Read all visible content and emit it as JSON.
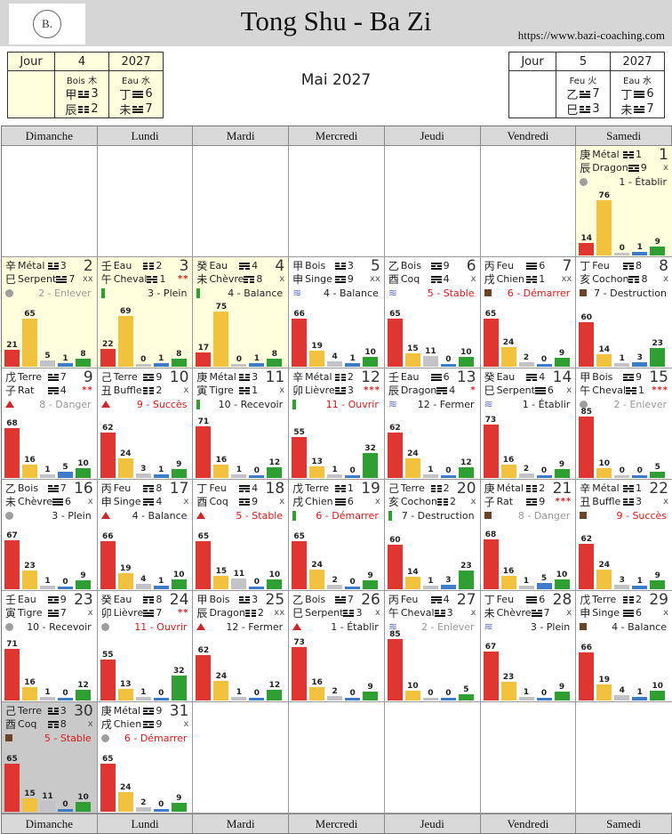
{
  "header": {
    "logo_text": "B.",
    "title": "Tong Shu - Ba Zi",
    "url": "https://www.bazi-coaching.com"
  },
  "month_title": "Mai 2027",
  "info_boxes": {
    "left": {
      "label": "Jour",
      "day": "4",
      "year": "2027",
      "columns": [
        {
          "element": "Bois 木",
          "stem": "甲",
          "stem_star": 3,
          "branch": "辰",
          "branch_star": 2
        },
        {
          "element": "Eau 水",
          "stem": "丁",
          "stem_star": 6,
          "branch": "未",
          "branch_star": 7
        }
      ]
    },
    "right": {
      "label": "Jour",
      "day": "5",
      "year": "2027",
      "columns": [
        {
          "element": "Feu 火",
          "stem": "乙",
          "stem_star": 7,
          "branch": "巳",
          "branch_star": 3
        },
        {
          "element": "Eau 水",
          "stem": "丁",
          "stem_star": 6,
          "branch": "未",
          "branch_star": 7
        }
      ]
    }
  },
  "weekdays": [
    "Dimanche",
    "Lundi",
    "Mardi",
    "Mercredi",
    "Jeudi",
    "Vendredi",
    "Samedi"
  ],
  "first_day_column": 6,
  "bar_colors": [
    "#df3632",
    "#f2c13e",
    "#c3c3c7",
    "#3d7cc9",
    "#2f9e33"
  ],
  "bar_series_names": [
    "red",
    "gold",
    "gray",
    "blue",
    "green"
  ],
  "days": [
    {
      "day": 1,
      "stem": "庚",
      "stem_element": "Métal",
      "stem_star": 1,
      "branch": "辰",
      "branch_name": "Dragon",
      "branch_star": 9,
      "mark": "x",
      "mark_style": "plain",
      "icon": "circle-gray",
      "officer": "1 - Établir",
      "officer_style": "normal",
      "bars": [
        14,
        76,
        0,
        1,
        9
      ],
      "bg": "yellow"
    },
    {
      "day": 2,
      "stem": "辛",
      "stem_element": "Métal",
      "stem_star": 3,
      "branch": "巳",
      "branch_name": "Serpent",
      "branch_star": 7,
      "mark": "xx",
      "mark_style": "plain",
      "icon": "circle-gray",
      "officer": "2 - Enlever",
      "officer_style": "muted",
      "bars": [
        21,
        65,
        5,
        1,
        8
      ],
      "bg": "yellow"
    },
    {
      "day": 3,
      "stem": "壬",
      "stem_element": "Eau",
      "stem_star": 2,
      "branch": "午",
      "branch_name": "Cheval",
      "branch_star": 1,
      "mark": "**",
      "mark_style": "red",
      "icon": "bar-green",
      "officer": "3 - Plein",
      "officer_style": "normal",
      "bars": [
        22,
        69,
        0,
        1,
        8
      ],
      "bg": "yellow"
    },
    {
      "day": 4,
      "stem": "癸",
      "stem_element": "Eau",
      "stem_star": 4,
      "branch": "未",
      "branch_name": "Chèvre",
      "branch_star": 8,
      "mark": "x",
      "mark_style": "plain",
      "icon": "bar-green",
      "officer": "4 - Balance",
      "officer_style": "normal",
      "bars": [
        17,
        75,
        0,
        1,
        8
      ],
      "bg": "yellow"
    },
    {
      "day": 5,
      "stem": "甲",
      "stem_element": "Bois",
      "stem_star": 3,
      "branch": "申",
      "branch_name": "Singe",
      "branch_star": 9,
      "mark": "xx",
      "mark_style": "plain",
      "icon": "wave-blue",
      "officer": "4 - Balance",
      "officer_style": "normal",
      "bars": [
        66,
        19,
        4,
        1,
        10
      ],
      "bg": "none"
    },
    {
      "day": 6,
      "stem": "乙",
      "stem_element": "Bois",
      "stem_star": 9,
      "branch": "酉",
      "branch_name": "Coq",
      "branch_star": 4,
      "mark": "x",
      "mark_style": "plain",
      "icon": "wave-blue",
      "officer": "5 - Stable",
      "officer_style": "red",
      "bars": [
        65,
        15,
        11,
        0,
        10
      ],
      "bg": "none"
    },
    {
      "day": 7,
      "stem": "丙",
      "stem_element": "Feu",
      "stem_star": 6,
      "branch": "戌",
      "branch_name": "Chien",
      "branch_star": 1,
      "mark": "xx",
      "mark_style": "plain",
      "icon": "square-brown",
      "officer": "6 - Démarrer",
      "officer_style": "red",
      "bars": [
        65,
        24,
        2,
        0,
        9
      ],
      "bg": "none"
    },
    {
      "day": 8,
      "stem": "丁",
      "stem_element": "Feu",
      "stem_star": 8,
      "branch": "亥",
      "branch_name": "Cochon",
      "branch_star": 8,
      "mark": "x",
      "mark_style": "plain",
      "icon": "square-brown",
      "officer": "7 - Destruction",
      "officer_style": "normal",
      "bars": [
        60,
        14,
        1,
        3,
        23
      ],
      "bg": "none"
    },
    {
      "day": 9,
      "stem": "戊",
      "stem_element": "Terre",
      "stem_star": 7,
      "branch": "子",
      "branch_name": "Rat",
      "branch_star": 4,
      "mark": "**",
      "mark_style": "red",
      "icon": "triangle-red",
      "officer": "8 - Danger",
      "officer_style": "muted",
      "bars": [
        68,
        16,
        1,
        5,
        10
      ],
      "bg": "none"
    },
    {
      "day": 10,
      "stem": "己",
      "stem_element": "Terre",
      "stem_star": 9,
      "branch": "丑",
      "branch_name": "Buffle",
      "branch_star": 2,
      "mark": "x",
      "mark_style": "plain",
      "icon": "triangle-red",
      "officer": "9 - Succès",
      "officer_style": "red",
      "bars": [
        62,
        24,
        3,
        1,
        9
      ],
      "bg": "none"
    },
    {
      "day": 11,
      "stem": "庚",
      "stem_element": "Métal",
      "stem_star": 3,
      "branch": "寅",
      "branch_name": "Tigre",
      "branch_star": 1,
      "mark": "x",
      "mark_style": "plain",
      "icon": "bar-green",
      "officer": "10 - Recevoir",
      "officer_style": "normal",
      "bars": [
        71,
        16,
        1,
        0,
        12
      ],
      "bg": "none"
    },
    {
      "day": 12,
      "stem": "辛",
      "stem_element": "Métal",
      "stem_star": 2,
      "branch": "卯",
      "branch_name": "Lièvre",
      "branch_star": 3,
      "mark": "***",
      "mark_style": "red",
      "icon": "bar-green",
      "officer": "11 - Ouvrir",
      "officer_style": "red",
      "bars": [
        55,
        13,
        1,
        0,
        32
      ],
      "bg": "none"
    },
    {
      "day": 13,
      "stem": "壬",
      "stem_element": "Eau",
      "stem_star": 6,
      "branch": "辰",
      "branch_name": "Dragon",
      "branch_star": 4,
      "mark": "*",
      "mark_style": "red",
      "icon": "wave-blue",
      "officer": "12 - Fermer",
      "officer_style": "normal",
      "bars": [
        62,
        24,
        1,
        0,
        12
      ],
      "bg": "none"
    },
    {
      "day": 14,
      "stem": "癸",
      "stem_element": "Eau",
      "stem_star": 4,
      "branch": "巳",
      "branch_name": "Serpent",
      "branch_star": 6,
      "mark": "x",
      "mark_style": "plain",
      "icon": "wave-blue",
      "officer": "1 - Établir",
      "officer_style": "normal",
      "bars": [
        73,
        16,
        2,
        0,
        9
      ],
      "bg": "none"
    },
    {
      "day": 15,
      "stem": "甲",
      "stem_element": "Bois",
      "stem_star": 9,
      "branch": "午",
      "branch_name": "Cheval",
      "branch_star": 1,
      "mark": "***",
      "mark_style": "red",
      "icon": "circle-gray",
      "officer": "2 - Enlever",
      "officer_style": "muted",
      "bars": [
        85,
        10,
        0,
        0,
        5
      ],
      "bg": "none"
    },
    {
      "day": 16,
      "stem": "乙",
      "stem_element": "Bois",
      "stem_star": 7,
      "branch": "未",
      "branch_name": "Chèvre",
      "branch_star": 6,
      "mark": "x",
      "mark_style": "plain",
      "icon": "circle-gray",
      "officer": "3 - Plein",
      "officer_style": "normal",
      "bars": [
        67,
        23,
        1,
        0,
        9
      ],
      "bg": "none"
    },
    {
      "day": 17,
      "stem": "丙",
      "stem_element": "Feu",
      "stem_star": 8,
      "branch": "申",
      "branch_name": "Singe",
      "branch_star": 4,
      "mark": "x",
      "mark_style": "plain",
      "icon": "triangle-red",
      "officer": "4 - Balance",
      "officer_style": "normal",
      "bars": [
        66,
        19,
        4,
        1,
        10
      ],
      "bg": "none"
    },
    {
      "day": 18,
      "stem": "丁",
      "stem_element": "Feu",
      "stem_star": 4,
      "branch": "酉",
      "branch_name": "Coq",
      "branch_star": 9,
      "mark": "x",
      "mark_style": "plain",
      "icon": "triangle-red",
      "officer": "5 - Stable",
      "officer_style": "red",
      "bars": [
        65,
        15,
        11,
        0,
        10
      ],
      "bg": "none"
    },
    {
      "day": 19,
      "stem": "戊",
      "stem_element": "Terre",
      "stem_star": 1,
      "branch": "戌",
      "branch_name": "Chien",
      "branch_star": 6,
      "mark": "x",
      "mark_style": "plain",
      "icon": "bar-green",
      "officer": "6 - Démarrer",
      "officer_style": "red",
      "bars": [
        65,
        24,
        2,
        0,
        9
      ],
      "bg": "none"
    },
    {
      "day": 20,
      "stem": "己",
      "stem_element": "Terre",
      "stem_star": 2,
      "branch": "亥",
      "branch_name": "Cochon",
      "branch_star": 2,
      "mark": "x",
      "mark_style": "plain",
      "icon": "bar-green",
      "officer": "7 - Destruction",
      "officer_style": "normal",
      "bars": [
        60,
        14,
        1,
        3,
        23
      ],
      "bg": "none"
    },
    {
      "day": 21,
      "stem": "庚",
      "stem_element": "Métal",
      "stem_star": 2,
      "branch": "子",
      "branch_name": "Rat",
      "branch_star": 9,
      "mark": "***",
      "mark_style": "red",
      "icon": "square-brown",
      "officer": "8 - Danger",
      "officer_style": "muted",
      "bars": [
        68,
        16,
        1,
        5,
        10
      ],
      "bg": "none"
    },
    {
      "day": 22,
      "stem": "辛",
      "stem_element": "Métal",
      "stem_star": 1,
      "branch": "丑",
      "branch_name": "Buffle",
      "branch_star": 3,
      "mark": "x",
      "mark_style": "plain",
      "icon": "square-brown",
      "officer": "9 - Succès",
      "officer_style": "red",
      "bars": [
        62,
        24,
        3,
        1,
        9
      ],
      "bg": "none"
    },
    {
      "day": 23,
      "stem": "壬",
      "stem_element": "Eau",
      "stem_star": 9,
      "branch": "寅",
      "branch_name": "Tigre",
      "branch_star": 7,
      "mark": "x",
      "mark_style": "plain",
      "icon": "circle-gray",
      "officer": "10 - Recevoir",
      "officer_style": "normal",
      "bars": [
        71,
        16,
        1,
        0,
        12
      ],
      "bg": "none"
    },
    {
      "day": 24,
      "stem": "癸",
      "stem_element": "Eau",
      "stem_star": 8,
      "branch": "卯",
      "branch_name": "Lièvre",
      "branch_star": 7,
      "mark": "**",
      "mark_style": "red",
      "icon": "circle-gray",
      "officer": "11 - Ouvrir",
      "officer_style": "red",
      "bars": [
        55,
        13,
        1,
        0,
        32
      ],
      "bg": "none"
    },
    {
      "day": 25,
      "stem": "甲",
      "stem_element": "Bois",
      "stem_star": 3,
      "branch": "辰",
      "branch_name": "Dragon",
      "branch_star": 2,
      "mark": "xx",
      "mark_style": "plain",
      "icon": "triangle-red",
      "officer": "12 - Fermer",
      "officer_style": "normal",
      "bars": [
        62,
        24,
        1,
        0,
        12
      ],
      "bg": "none"
    },
    {
      "day": 26,
      "stem": "乙",
      "stem_element": "Bois",
      "stem_star": 7,
      "branch": "巳",
      "branch_name": "Serpent",
      "branch_star": 3,
      "mark": "x",
      "mark_style": "plain",
      "icon": "triangle-red",
      "officer": "1 - Établir",
      "officer_style": "normal",
      "bars": [
        73,
        16,
        2,
        0,
        9
      ],
      "bg": "none"
    },
    {
      "day": 27,
      "stem": "丙",
      "stem_element": "Feu",
      "stem_star": 4,
      "branch": "午",
      "branch_name": "Cheval",
      "branch_star": 3,
      "mark": "x",
      "mark_style": "plain",
      "icon": "wave-blue",
      "officer": "2 - Enlever",
      "officer_style": "muted",
      "bars": [
        85,
        10,
        0,
        0,
        5
      ],
      "bg": "none"
    },
    {
      "day": 28,
      "stem": "丁",
      "stem_element": "Feu",
      "stem_star": 6,
      "branch": "未",
      "branch_name": "Chèvre",
      "branch_star": 7,
      "mark": "x",
      "mark_style": "plain",
      "icon": "wave-blue",
      "officer": "3 - Plein",
      "officer_style": "normal",
      "bars": [
        67,
        23,
        1,
        0,
        9
      ],
      "bg": "none"
    },
    {
      "day": 29,
      "stem": "戊",
      "stem_element": "Terre",
      "stem_star": 2,
      "branch": "申",
      "branch_name": "Singe",
      "branch_star": 6,
      "mark": "x",
      "mark_style": "plain",
      "icon": "square-brown",
      "officer": "4 - Balance",
      "officer_style": "normal",
      "bars": [
        66,
        19,
        4,
        1,
        10
      ],
      "bg": "none"
    },
    {
      "day": 30,
      "stem": "己",
      "stem_element": "Terre",
      "stem_star": 3,
      "branch": "酉",
      "branch_name": "Coq",
      "branch_star": 8,
      "mark": "x",
      "mark_style": "plain",
      "icon": "square-brown",
      "officer": "5 - Stable",
      "officer_style": "red",
      "bars": [
        65,
        15,
        11,
        0,
        10
      ],
      "bg": "gray"
    },
    {
      "day": 31,
      "stem": "庚",
      "stem_element": "Métal",
      "stem_star": 9,
      "branch": "戌",
      "branch_name": "Chien",
      "branch_star": 9,
      "mark": "x",
      "mark_style": "plain",
      "icon": "circle-gray",
      "officer": "6 - Démarrer",
      "officer_style": "red",
      "bars": [
        65,
        24,
        2,
        0,
        9
      ],
      "bg": "none"
    }
  ]
}
